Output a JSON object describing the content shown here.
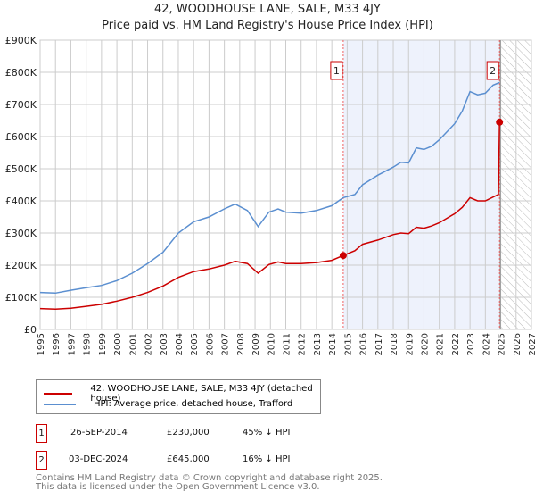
{
  "chart_data": {
    "type": "line",
    "title": "42, WOODHOUSE LANE, SALE, M33 4JY",
    "subtitle": "Price paid vs. HM Land Registry's House Price Index (HPI)",
    "xlim": [
      1995,
      2027
    ],
    "ylim": [
      0,
      900000
    ],
    "x_ticks": [
      "1995",
      "1996",
      "1997",
      "1998",
      "1999",
      "2000",
      "2001",
      "2002",
      "2003",
      "2004",
      "2005",
      "2006",
      "2007",
      "2008",
      "2009",
      "2010",
      "2011",
      "2012",
      "2013",
      "2014",
      "2015",
      "2016",
      "2017",
      "2018",
      "2019",
      "2020",
      "2021",
      "2022",
      "2023",
      "2024",
      "2025",
      "2026",
      "2027"
    ],
    "y_ticks": [
      "£0",
      "£100K",
      "£200K",
      "£300K",
      "£400K",
      "£500K",
      "£600K",
      "£700K",
      "£800K",
      "£900K"
    ],
    "grid": true,
    "series": [
      {
        "name": "42, WOODHOUSE LANE, SALE, M33 4JY (detached house)",
        "color": "#cc0000",
        "x": [
          1995,
          1996,
          1997,
          1998,
          1999,
          2000,
          2001,
          2002,
          2003,
          2004,
          2005,
          2006,
          2007,
          2007.7,
          2008.5,
          2009.2,
          2009.9,
          2010.5,
          2011,
          2012,
          2013,
          2014,
          2014.74,
          2015.5,
          2016,
          2017,
          2018,
          2018.5,
          2019,
          2019.5,
          2020,
          2020.5,
          2021,
          2022,
          2022.5,
          2023,
          2023.5,
          2024,
          2024.85,
          2024.92
        ],
        "y": [
          65,
          63,
          66,
          72,
          78,
          88,
          100,
          115,
          135,
          162,
          180,
          188,
          200,
          212,
          205,
          175,
          202,
          210,
          205,
          205,
          208,
          215,
          230,
          245,
          265,
          278,
          295,
          300,
          298,
          318,
          315,
          322,
          332,
          360,
          380,
          410,
          400,
          400,
          420,
          645
        ]
      },
      {
        "name": "HPI: Average price, detached house, Trafford",
        "color": "#5b8fd0",
        "x": [
          1995,
          1996,
          1997,
          1998,
          1999,
          2000,
          2001,
          2002,
          2003,
          2004,
          2005,
          2006,
          2007,
          2007.7,
          2008.5,
          2009.2,
          2009.9,
          2010.5,
          2011,
          2012,
          2013,
          2014,
          2014.74,
          2015.5,
          2016,
          2017,
          2018,
          2018.5,
          2019,
          2019.5,
          2020,
          2020.5,
          2021,
          2022,
          2022.5,
          2023,
          2023.5,
          2024,
          2024.5,
          2024.92
        ],
        "y": [
          115,
          113,
          122,
          130,
          137,
          152,
          175,
          205,
          240,
          300,
          335,
          350,
          375,
          390,
          370,
          320,
          365,
          375,
          365,
          362,
          370,
          385,
          410,
          420,
          450,
          480,
          505,
          520,
          518,
          565,
          560,
          570,
          590,
          640,
          680,
          740,
          730,
          735,
          760,
          768
        ]
      }
    ],
    "y_units": "thousands GBP",
    "annotations": [
      {
        "label": "1",
        "x": 2014.74,
        "y": 230
      },
      {
        "label": "2",
        "x": 2024.92,
        "y": 645
      }
    ],
    "shaded_from": 2014.74,
    "shaded_to": 2024.92,
    "hatched_from": 2025
  },
  "legend": {
    "red": "42, WOODHOUSE LANE, SALE, M33 4JY (detached house)",
    "blue": "HPI: Average price, detached house, Trafford"
  },
  "transactions": [
    {
      "num": "1",
      "date": "26-SEP-2014",
      "price": "£230,000",
      "hpi": "45% ↓ HPI"
    },
    {
      "num": "2",
      "date": "03-DEC-2024",
      "price": "£645,000",
      "hpi": "16% ↓ HPI"
    }
  ],
  "footer": [
    "Contains HM Land Registry data © Crown copyright and database right 2025.",
    "This data is licensed under the Open Government Licence v3.0."
  ]
}
